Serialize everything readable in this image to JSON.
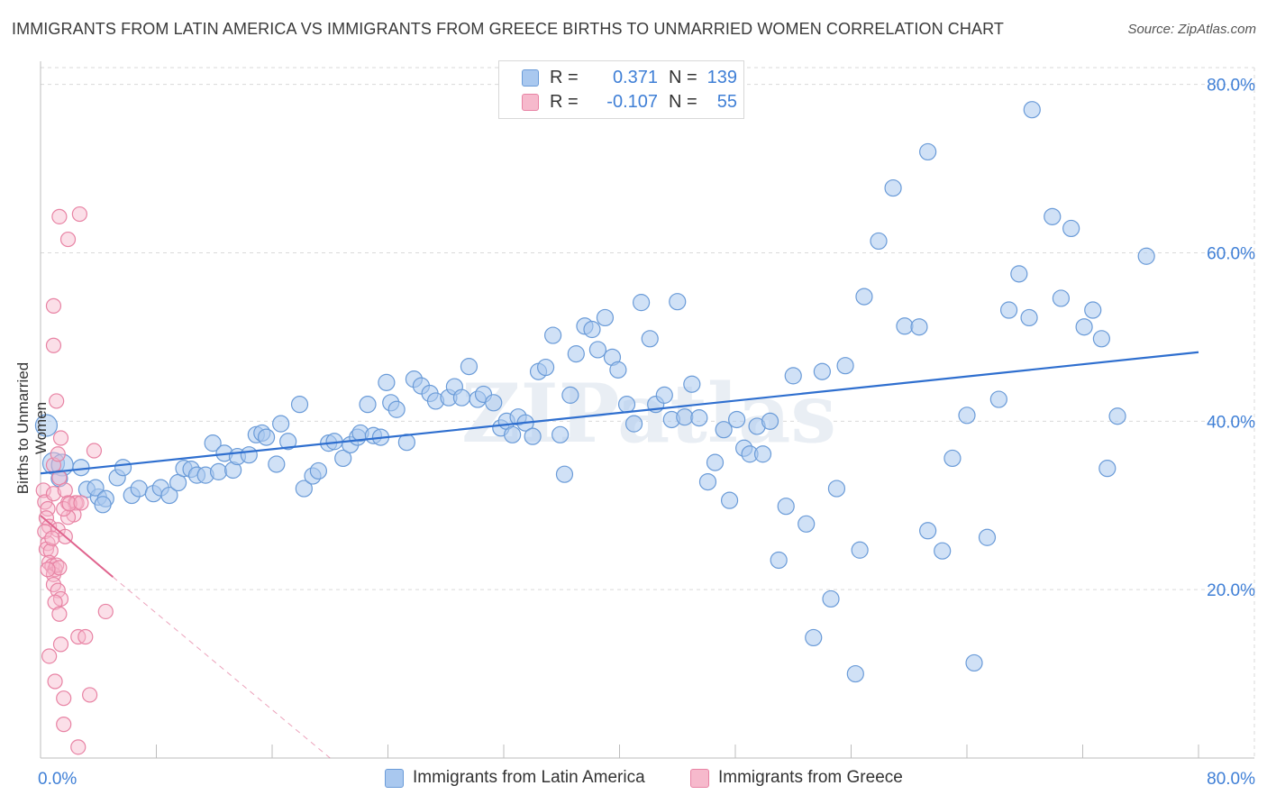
{
  "title": "IMMIGRANTS FROM LATIN AMERICA VS IMMIGRANTS FROM GREECE BIRTHS TO UNMARRIED WOMEN CORRELATION CHART",
  "source": "Source: ZipAtlas.com",
  "legend": {
    "rows": [
      {
        "r_label": "R =",
        "r_value": "0.371",
        "n_label": "N =",
        "n_value": "139"
      },
      {
        "r_label": "R =",
        "r_value": "-0.107",
        "n_label": "N =",
        "n_value": "55"
      }
    ]
  },
  "colors": {
    "blue_fill": "#a9c8ef",
    "blue_stroke": "#6a9bd8",
    "blue_line": "#2f6fcf",
    "pink_fill": "#f6b9cc",
    "pink_stroke": "#e883a4",
    "pink_line": "#e0648e",
    "axis_text": "#3f7fd6",
    "grid": "#d9d9d9"
  },
  "chart_data": {
    "type": "scatter",
    "title": "IMMIGRANTS FROM LATIN AMERICA VS IMMIGRANTS FROM GREECE BIRTHS TO UNMARRIED WOMEN CORRELATION CHART",
    "xlabel": "",
    "ylabel": "Births to Unmarried Women",
    "xlim": [
      0,
      80
    ],
    "ylim": [
      0,
      82
    ],
    "x_tick_labels": [
      "0.0%",
      "80.0%"
    ],
    "y_ticks": [
      20,
      40,
      60,
      80
    ],
    "y_tick_labels": [
      "20.0%",
      "40.0%",
      "60.0%",
      "80.0%"
    ],
    "grid": true,
    "watermark": "ZIPatlas",
    "series": [
      {
        "name": "Immigrants from Latin America",
        "color": "#a9c8ef",
        "trend": {
          "x": [
            0,
            80
          ],
          "y": [
            33.8,
            48.2
          ]
        },
        "points": [
          [
            0.4,
            39.5
          ],
          [
            0.9,
            35.0
          ],
          [
            1.5,
            34.8
          ],
          [
            1.3,
            33.2
          ],
          [
            2.8,
            34.5
          ],
          [
            3.2,
            31.9
          ],
          [
            4.0,
            31.0
          ],
          [
            3.8,
            32.1
          ],
          [
            4.5,
            30.8
          ],
          [
            4.3,
            30.1
          ],
          [
            5.3,
            33.3
          ],
          [
            5.7,
            34.5
          ],
          [
            6.3,
            31.2
          ],
          [
            6.8,
            32.0
          ],
          [
            7.8,
            31.4
          ],
          [
            8.3,
            32.1
          ],
          [
            8.9,
            31.2
          ],
          [
            9.5,
            32.7
          ],
          [
            9.9,
            34.4
          ],
          [
            10.4,
            34.3
          ],
          [
            10.8,
            33.6
          ],
          [
            11.4,
            33.6
          ],
          [
            11.9,
            37.4
          ],
          [
            12.3,
            34.0
          ],
          [
            12.7,
            36.2
          ],
          [
            13.3,
            34.2
          ],
          [
            13.6,
            35.8
          ],
          [
            14.4,
            36.0
          ],
          [
            14.9,
            38.4
          ],
          [
            15.3,
            38.6
          ],
          [
            15.6,
            38.1
          ],
          [
            16.3,
            34.9
          ],
          [
            16.6,
            39.7
          ],
          [
            17.1,
            37.6
          ],
          [
            17.9,
            42.0
          ],
          [
            18.2,
            32.0
          ],
          [
            18.8,
            33.5
          ],
          [
            19.2,
            34.1
          ],
          [
            19.9,
            37.4
          ],
          [
            20.3,
            37.6
          ],
          [
            20.9,
            35.6
          ],
          [
            21.4,
            37.2
          ],
          [
            21.9,
            38.1
          ],
          [
            22.1,
            38.6
          ],
          [
            22.6,
            42.0
          ],
          [
            23.0,
            38.3
          ],
          [
            23.5,
            38.1
          ],
          [
            23.9,
            44.6
          ],
          [
            24.2,
            42.2
          ],
          [
            24.6,
            41.4
          ],
          [
            25.3,
            37.5
          ],
          [
            25.8,
            45.0
          ],
          [
            26.3,
            44.2
          ],
          [
            26.9,
            43.3
          ],
          [
            27.3,
            42.4
          ],
          [
            28.2,
            42.8
          ],
          [
            28.6,
            44.1
          ],
          [
            29.1,
            42.8
          ],
          [
            29.6,
            46.5
          ],
          [
            30.2,
            42.6
          ],
          [
            30.6,
            43.2
          ],
          [
            31.3,
            42.2
          ],
          [
            31.8,
            39.2
          ],
          [
            32.2,
            40.0
          ],
          [
            32.6,
            38.4
          ],
          [
            33.0,
            40.5
          ],
          [
            33.5,
            39.8
          ],
          [
            34.0,
            38.2
          ],
          [
            34.4,
            45.9
          ],
          [
            34.9,
            46.4
          ],
          [
            35.4,
            50.2
          ],
          [
            35.9,
            38.4
          ],
          [
            36.2,
            33.7
          ],
          [
            36.6,
            43.1
          ],
          [
            37.0,
            48.0
          ],
          [
            37.6,
            51.3
          ],
          [
            38.1,
            50.9
          ],
          [
            38.5,
            48.5
          ],
          [
            39.0,
            52.3
          ],
          [
            39.5,
            47.6
          ],
          [
            39.9,
            46.1
          ],
          [
            40.5,
            42.0
          ],
          [
            41.0,
            39.7
          ],
          [
            41.5,
            54.1
          ],
          [
            42.1,
            49.8
          ],
          [
            42.5,
            42.0
          ],
          [
            43.1,
            43.1
          ],
          [
            43.6,
            40.2
          ],
          [
            44.0,
            54.2
          ],
          [
            44.5,
            40.5
          ],
          [
            45.0,
            44.4
          ],
          [
            45.5,
            40.4
          ],
          [
            46.1,
            32.8
          ],
          [
            46.6,
            35.1
          ],
          [
            47.2,
            39.0
          ],
          [
            47.6,
            30.6
          ],
          [
            48.1,
            40.2
          ],
          [
            48.6,
            36.8
          ],
          [
            49.0,
            36.1
          ],
          [
            49.5,
            39.4
          ],
          [
            49.9,
            36.1
          ],
          [
            50.4,
            40.0
          ],
          [
            51.0,
            23.5
          ],
          [
            51.5,
            29.9
          ],
          [
            52.0,
            45.4
          ],
          [
            52.9,
            27.8
          ],
          [
            53.4,
            14.3
          ],
          [
            54.0,
            45.9
          ],
          [
            54.6,
            18.9
          ],
          [
            55.0,
            32.0
          ],
          [
            55.6,
            46.6
          ],
          [
            56.3,
            10.0
          ],
          [
            56.6,
            24.7
          ],
          [
            56.9,
            54.8
          ],
          [
            57.9,
            61.4
          ],
          [
            58.9,
            67.7
          ],
          [
            59.7,
            51.3
          ],
          [
            60.7,
            51.2
          ],
          [
            61.3,
            72.0
          ],
          [
            61.3,
            27.0
          ],
          [
            62.3,
            24.6
          ],
          [
            63.0,
            35.6
          ],
          [
            64.5,
            11.3
          ],
          [
            64.0,
            40.7
          ],
          [
            65.4,
            26.2
          ],
          [
            66.2,
            42.6
          ],
          [
            66.9,
            53.2
          ],
          [
            67.6,
            57.5
          ],
          [
            68.3,
            52.3
          ],
          [
            68.5,
            77.0
          ],
          [
            69.9,
            64.3
          ],
          [
            70.5,
            54.6
          ],
          [
            71.2,
            62.9
          ],
          [
            72.1,
            51.2
          ],
          [
            72.7,
            53.2
          ],
          [
            73.3,
            49.8
          ],
          [
            73.7,
            34.4
          ],
          [
            74.4,
            40.6
          ],
          [
            76.4,
            59.6
          ]
        ]
      },
      {
        "name": "Immigrants from Greece",
        "color": "#f6b9cc",
        "trend": {
          "x": [
            0,
            5
          ],
          "y": [
            28.8,
            21.5
          ]
        },
        "trend_dashed": {
          "x": [
            5,
            20
          ],
          "y": [
            21.5,
            0
          ]
        },
        "points": [
          [
            0.2,
            31.8
          ],
          [
            0.3,
            30.4
          ],
          [
            0.5,
            29.6
          ],
          [
            0.4,
            28.5
          ],
          [
            0.6,
            27.5
          ],
          [
            0.3,
            26.9
          ],
          [
            0.5,
            25.5
          ],
          [
            0.4,
            24.8
          ],
          [
            0.7,
            24.6
          ],
          [
            0.6,
            23.2
          ],
          [
            0.8,
            22.8
          ],
          [
            1.0,
            22.4
          ],
          [
            0.9,
            21.8
          ],
          [
            1.1,
            22.9
          ],
          [
            1.3,
            22.6
          ],
          [
            0.9,
            20.6
          ],
          [
            1.2,
            19.9
          ],
          [
            1.4,
            18.9
          ],
          [
            1.0,
            18.5
          ],
          [
            1.3,
            17.1
          ],
          [
            0.6,
            12.1
          ],
          [
            1.4,
            13.5
          ],
          [
            1.0,
            9.1
          ],
          [
            1.6,
            7.1
          ],
          [
            1.6,
            4.0
          ],
          [
            2.6,
            1.3
          ],
          [
            2.6,
            14.4
          ],
          [
            3.1,
            14.4
          ],
          [
            3.4,
            7.5
          ],
          [
            4.5,
            17.4
          ],
          [
            0.9,
            34.8
          ],
          [
            1.3,
            33.3
          ],
          [
            0.9,
            31.4
          ],
          [
            1.4,
            38.0
          ],
          [
            1.2,
            36.1
          ],
          [
            1.7,
            31.8
          ],
          [
            1.9,
            30.3
          ],
          [
            2.4,
            30.3
          ],
          [
            2.5,
            30.3
          ],
          [
            2.3,
            28.9
          ],
          [
            1.9,
            28.6
          ],
          [
            1.6,
            29.6
          ],
          [
            1.2,
            27.1
          ],
          [
            1.7,
            26.3
          ],
          [
            0.8,
            26.1
          ],
          [
            0.5,
            22.4
          ],
          [
            0.9,
            49.0
          ],
          [
            0.9,
            53.7
          ],
          [
            1.1,
            42.4
          ],
          [
            1.3,
            64.3
          ],
          [
            2.7,
            64.6
          ],
          [
            1.9,
            61.6
          ],
          [
            3.7,
            36.5
          ],
          [
            2.0,
            30.2
          ],
          [
            2.8,
            30.3
          ]
        ]
      }
    ]
  },
  "bottom_legend": [
    "Immigrants from Latin America",
    "Immigrants from Greece"
  ]
}
